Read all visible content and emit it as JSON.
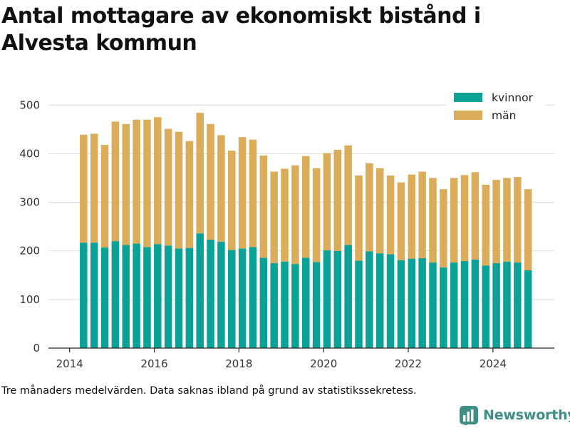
{
  "chart_data": {
    "type": "bar",
    "stacked": true,
    "title": "Antal mottagare av ekonomiskt bistånd i Alvesta kommun",
    "xlabel": "",
    "ylabel": "",
    "ylim": [
      0,
      540
    ],
    "yticks": [
      0,
      100,
      200,
      300,
      400,
      500
    ],
    "xlim": [
      2013.5,
      2025.45
    ],
    "xticks": [
      2014,
      2016,
      2018,
      2020,
      2022,
      2024
    ],
    "grid": true,
    "legend_position": "top-right",
    "x": [
      2014.33,
      2014.58,
      2014.83,
      2015.08,
      2015.33,
      2015.58,
      2015.83,
      2016.08,
      2016.33,
      2016.58,
      2016.83,
      2017.08,
      2017.33,
      2017.58,
      2017.83,
      2018.08,
      2018.33,
      2018.58,
      2018.83,
      2019.08,
      2019.33,
      2019.58,
      2019.83,
      2020.08,
      2020.33,
      2020.58,
      2020.83,
      2021.08,
      2021.33,
      2021.58,
      2021.83,
      2022.08,
      2022.33,
      2022.58,
      2022.83,
      2023.08,
      2023.33,
      2023.58,
      2023.83,
      2024.08,
      2024.33,
      2024.58,
      2024.83
    ],
    "series": [
      {
        "name": "kvinnor",
        "color": "#0aa296",
        "values": [
          217,
          217,
          207,
          220,
          212,
          215,
          208,
          214,
          211,
          205,
          206,
          236,
          223,
          219,
          202,
          205,
          208,
          186,
          175,
          178,
          173,
          186,
          177,
          201,
          200,
          212,
          180,
          199,
          195,
          193,
          181,
          184,
          185,
          176,
          166,
          176,
          179,
          182,
          170,
          175,
          178,
          176,
          160
        ]
      },
      {
        "name": "män",
        "color": "#dbad5a",
        "values": [
          222,
          224,
          211,
          246,
          249,
          255,
          262,
          261,
          240,
          240,
          220,
          248,
          238,
          219,
          204,
          229,
          221,
          210,
          188,
          191,
          203,
          209,
          193,
          200,
          208,
          205,
          175,
          181,
          175,
          162,
          160,
          173,
          178,
          174,
          161,
          174,
          177,
          180,
          166,
          171,
          172,
          176,
          167
        ]
      }
    ]
  },
  "footnote": "Tre månaders medelvärden. Data saknas ibland på grund av statistikssekretess.",
  "brand": {
    "name": "Newsworthy",
    "logo_icon": "bar-chart-logo-icon",
    "color": "#3f8f86"
  }
}
